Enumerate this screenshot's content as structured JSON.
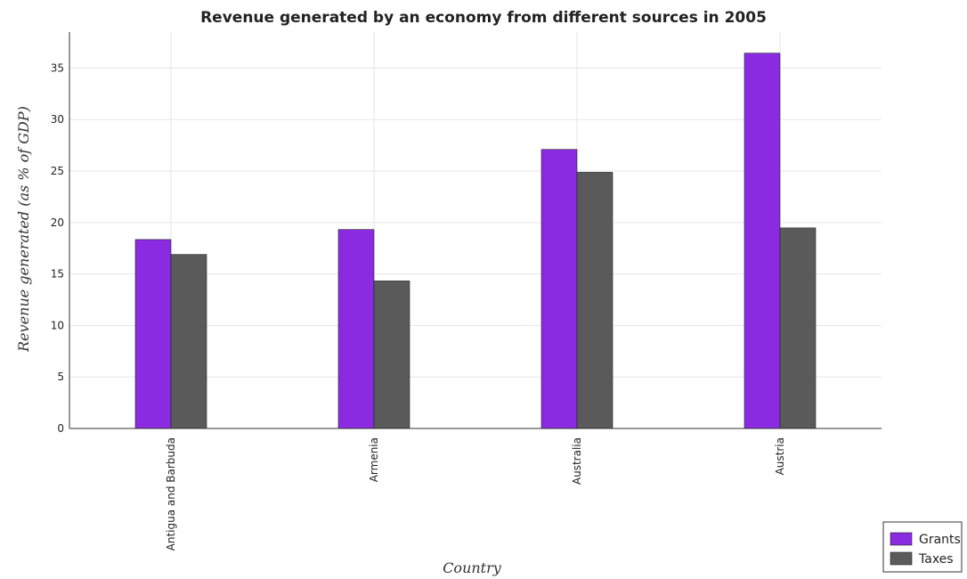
{
  "chart_data": {
    "type": "bar",
    "title": "Revenue generated by an economy from different sources in 2005",
    "xlabel": "Country",
    "ylabel": "Revenue generated (as % of GDP)",
    "categories": [
      "Antigua and Barbuda",
      "Armenia",
      "Australia",
      "Austria"
    ],
    "series": [
      {
        "name": "Grants",
        "color": "#8a2be2",
        "values": [
          18.35,
          19.32,
          27.1,
          36.45
        ]
      },
      {
        "name": "Taxes",
        "color": "#5a5a5a",
        "values": [
          16.9,
          14.33,
          24.88,
          19.48
        ]
      }
    ],
    "ylim": [
      0,
      38.5
    ],
    "yticks": [
      0,
      5,
      10,
      15,
      20,
      25,
      30,
      35
    ],
    "grid": true,
    "legend_position": "bottom-right"
  }
}
